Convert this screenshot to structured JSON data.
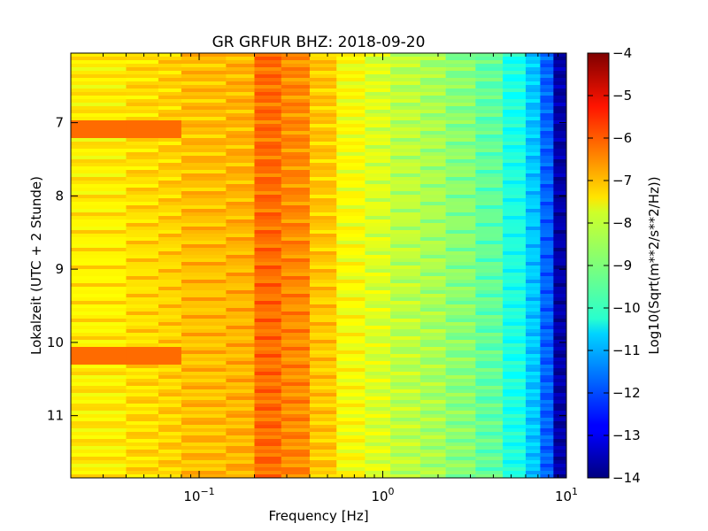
{
  "chart_data": {
    "type": "heatmap",
    "title": "GR GRFUR BHZ: 2018-09-20",
    "xlabel": "Frequency [Hz]",
    "ylabel": "Lokalzeit (UTC + 2 Stunde)",
    "x_scale": "log",
    "xlim": [
      0.02,
      10
    ],
    "ylim": [
      11.85,
      6.05
    ],
    "x_ticks": [
      {
        "value": 0.1,
        "base": "10",
        "exp": "−1"
      },
      {
        "value": 1,
        "base": "10",
        "exp": "0"
      },
      {
        "value": 10,
        "base": "10",
        "exp": "1"
      }
    ],
    "y_ticks": [
      {
        "value": 7,
        "label": "7"
      },
      {
        "value": 8,
        "label": "8"
      },
      {
        "value": 9,
        "label": "9"
      },
      {
        "value": 10,
        "label": "10"
      },
      {
        "value": 11,
        "label": "11"
      }
    ],
    "colorbar": {
      "label": "Log10(Sqrt(m**2/s**2/Hz))",
      "range": [
        -14,
        -4
      ],
      "colormap": "jet",
      "ticks": [
        {
          "value": -4,
          "label": "−4"
        },
        {
          "value": -5,
          "label": "−5"
        },
        {
          "value": -6,
          "label": "−6"
        },
        {
          "value": -7,
          "label": "−7"
        },
        {
          "value": -8,
          "label": "−8"
        },
        {
          "value": -9,
          "label": "−9"
        },
        {
          "value": -10,
          "label": "−10"
        },
        {
          "value": -11,
          "label": "−11"
        },
        {
          "value": -12,
          "label": "−12"
        },
        {
          "value": -13,
          "label": "−13"
        },
        {
          "value": -14,
          "label": "−14"
        }
      ]
    },
    "frequency_bin_edges": [
      0.02,
      0.04,
      0.06,
      0.08,
      0.14,
      0.2,
      0.28,
      0.4,
      0.56,
      0.8,
      1.1,
      1.6,
      2.2,
      3.2,
      4.5,
      6.0,
      7.2,
      8.5,
      10
    ],
    "mean_spectrum": [
      -7.6,
      -7.4,
      -7.3,
      -7.1,
      -7.0,
      -6.3,
      -6.6,
      -7.2,
      -7.8,
      -8.1,
      -8.4,
      -8.6,
      -8.9,
      -9.3,
      -10.0,
      -10.8,
      -11.8,
      -13.6
    ],
    "time_range": [
      6.05,
      11.85
    ],
    "time_rows": 120,
    "features": [
      {
        "time_start": 6.95,
        "time_end": 7.25,
        "freq_start": 0.02,
        "freq_end": 0.08,
        "value": -6.3
      },
      {
        "time_start": 10.05,
        "time_end": 10.35,
        "freq_start": 0.02,
        "freq_end": 0.08,
        "value": -6.3
      }
    ]
  }
}
